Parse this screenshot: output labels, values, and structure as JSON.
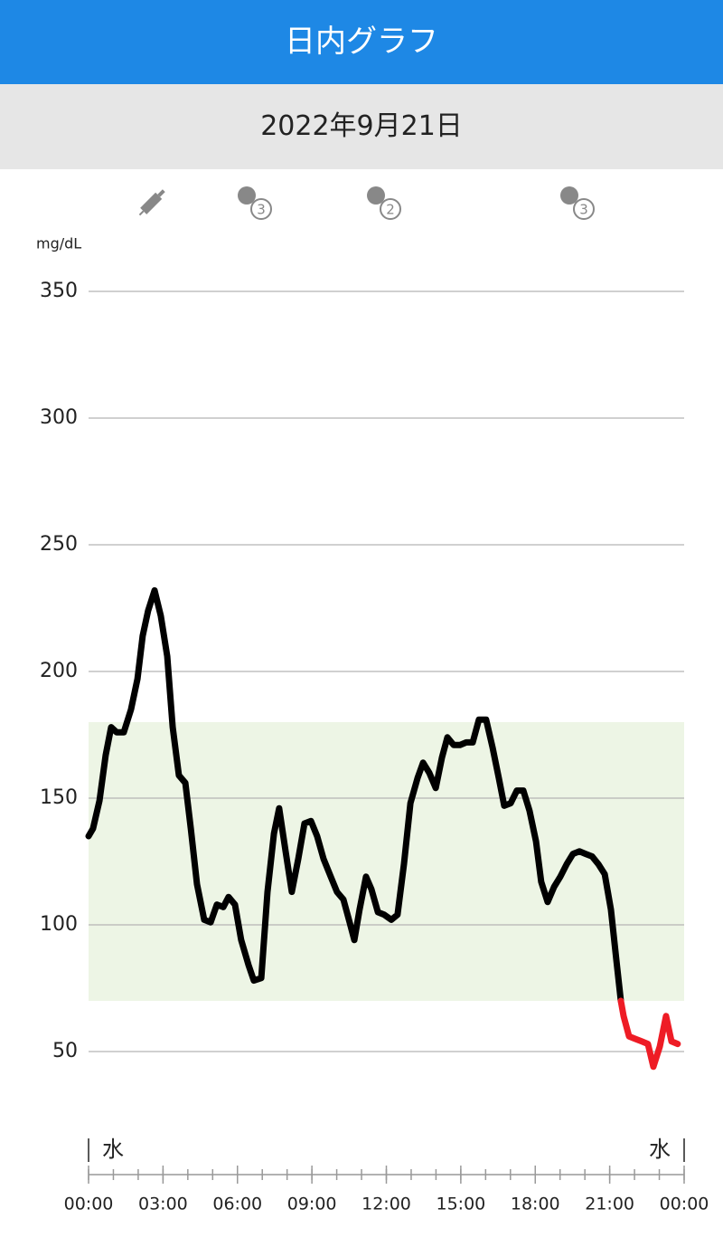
{
  "header": {
    "title": "日内グラフ"
  },
  "date_bar": {
    "date": "2022年9月21日"
  },
  "icon_badges": [
    "3",
    "2",
    "3"
  ],
  "chart_data": {
    "type": "line",
    "y_label": "mg/dL",
    "x": [
      0,
      0.18,
      0.44,
      0.69,
      0.91,
      1.13,
      1.42,
      1.71,
      1.97,
      2.18,
      2.4,
      2.66,
      2.91,
      3.17,
      3.39,
      3.64,
      3.9,
      4.12,
      4.37,
      4.66,
      4.92,
      5.17,
      5.43,
      5.64,
      5.9,
      6.15,
      6.45,
      6.66,
      6.96,
      7.21,
      7.47,
      7.68,
      7.94,
      8.19,
      8.45,
      8.7,
      8.96,
      9.21,
      9.47,
      9.76,
      10.01,
      10.27,
      10.52,
      10.71,
      10.92,
      11.18,
      11.4,
      11.66,
      11.91,
      12.2,
      12.45,
      12.71,
      12.97,
      13.26,
      13.48,
      13.73,
      13.99,
      14.24,
      14.46,
      14.71,
      14.97,
      15.22,
      15.48,
      15.73,
      16.02,
      16.28,
      16.53,
      16.75,
      17.01,
      17.26,
      17.52,
      17.77,
      18.03,
      18.24,
      18.5,
      18.76,
      19.01,
      19.27,
      19.52,
      19.78,
      20.03,
      20.29,
      20.54,
      20.8,
      21.05,
      21.27,
      21.45,
      21.56,
      21.78,
      22.03,
      22.29,
      22.54,
      22.76,
      23.02,
      23.27,
      23.49,
      23.74
    ],
    "series": [
      {
        "color": "#000000",
        "values": [
          135,
          138,
          149,
          167,
          178,
          176,
          176,
          185,
          197,
          214,
          224,
          232,
          222,
          206,
          178,
          159,
          156,
          138,
          116,
          102,
          101,
          108,
          107,
          111,
          108,
          94,
          84,
          78,
          79,
          113,
          136,
          146,
          129,
          113,
          126,
          140,
          141,
          135,
          126,
          119,
          113,
          110,
          101,
          94,
          106,
          119,
          114,
          105,
          104,
          102,
          104,
          124,
          148,
          158,
          164,
          160,
          154,
          166,
          174,
          171,
          171,
          172,
          172,
          181,
          181,
          170,
          158,
          147,
          148,
          153,
          153,
          145,
          133,
          117,
          109,
          115,
          119,
          124,
          128,
          129,
          128,
          127,
          124,
          120,
          106,
          86,
          70,
          null,
          null,
          null,
          null,
          null,
          null,
          null,
          null,
          null,
          null
        ]
      },
      {
        "color": "#ee1c25",
        "values": [
          null,
          null,
          null,
          null,
          null,
          null,
          null,
          null,
          null,
          null,
          null,
          null,
          null,
          null,
          null,
          null,
          null,
          null,
          null,
          null,
          null,
          null,
          null,
          null,
          null,
          null,
          null,
          null,
          null,
          null,
          null,
          null,
          null,
          null,
          null,
          null,
          null,
          null,
          null,
          null,
          null,
          null,
          null,
          null,
          null,
          null,
          null,
          null,
          null,
          null,
          null,
          null,
          null,
          null,
          null,
          null,
          null,
          null,
          null,
          null,
          null,
          null,
          null,
          null,
          null,
          null,
          null,
          null,
          null,
          null,
          null,
          null,
          null,
          null,
          null,
          null,
          null,
          null,
          null,
          null,
          null,
          null,
          null,
          null,
          null,
          null,
          70,
          64,
          56,
          55,
          54,
          53,
          44,
          52,
          64,
          54,
          53
        ]
      }
    ],
    "target_range": [
      70,
      180
    ],
    "target_color": "#edf5e5",
    "xlim": [
      0,
      24
    ],
    "xticks": [
      {
        "value": 0,
        "label": "00:00"
      },
      {
        "value": 3,
        "label": "03:00"
      },
      {
        "value": 6,
        "label": "06:00"
      },
      {
        "value": 9,
        "label": "09:00"
      },
      {
        "value": 12,
        "label": "12:00"
      },
      {
        "value": 15,
        "label": "15:00"
      },
      {
        "value": 18,
        "label": "18:00"
      },
      {
        "value": 21,
        "label": "21:00"
      },
      {
        "value": 24,
        "label": "00:00"
      }
    ],
    "ylim": [
      0,
      350
    ],
    "yticks": [
      50,
      100,
      150,
      200,
      250,
      300,
      350
    ],
    "grid": true,
    "day_labels": [
      "水",
      "水"
    ]
  }
}
